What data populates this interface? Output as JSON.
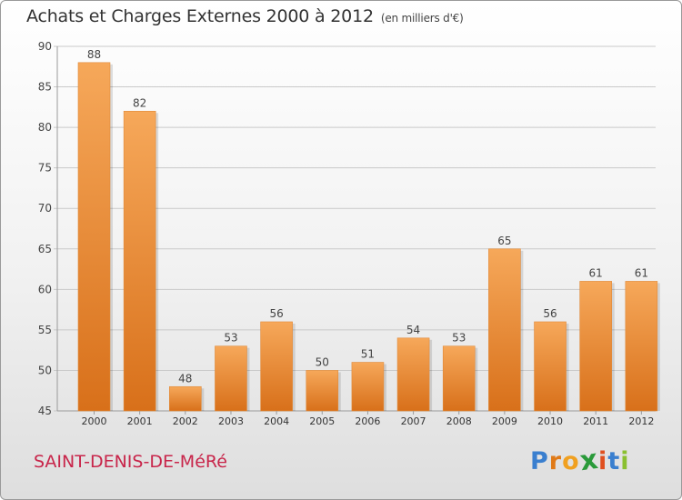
{
  "chart_data": {
    "type": "bar",
    "title": "Achats et Charges Externes 2000 à 2012",
    "subtitle": "(en milliers d'€)",
    "categories": [
      "2000",
      "2001",
      "2002",
      "2003",
      "2004",
      "2005",
      "2006",
      "2007",
      "2008",
      "2009",
      "2010",
      "2011",
      "2012"
    ],
    "values": [
      88,
      82,
      48,
      53,
      56,
      50,
      51,
      54,
      53,
      65,
      56,
      61,
      61
    ],
    "ylim": [
      45,
      90
    ],
    "yticks": [
      45,
      50,
      55,
      60,
      65,
      70,
      75,
      80,
      85,
      90
    ],
    "grid": true,
    "bar_color_top": "#f6a85a",
    "bar_color_bottom": "#d8701a"
  },
  "footer": {
    "commune": "SAINT-DENIS-DE-MéRé",
    "logo_letters": [
      "P",
      "r",
      "o",
      "x",
      "i",
      "t",
      "i"
    ],
    "logo_colors": [
      "#3a7fcf",
      "#e07a18",
      "#f0a020",
      "#2a9a3a",
      "#e05020",
      "#3a7fcf",
      "#8ac030"
    ]
  }
}
